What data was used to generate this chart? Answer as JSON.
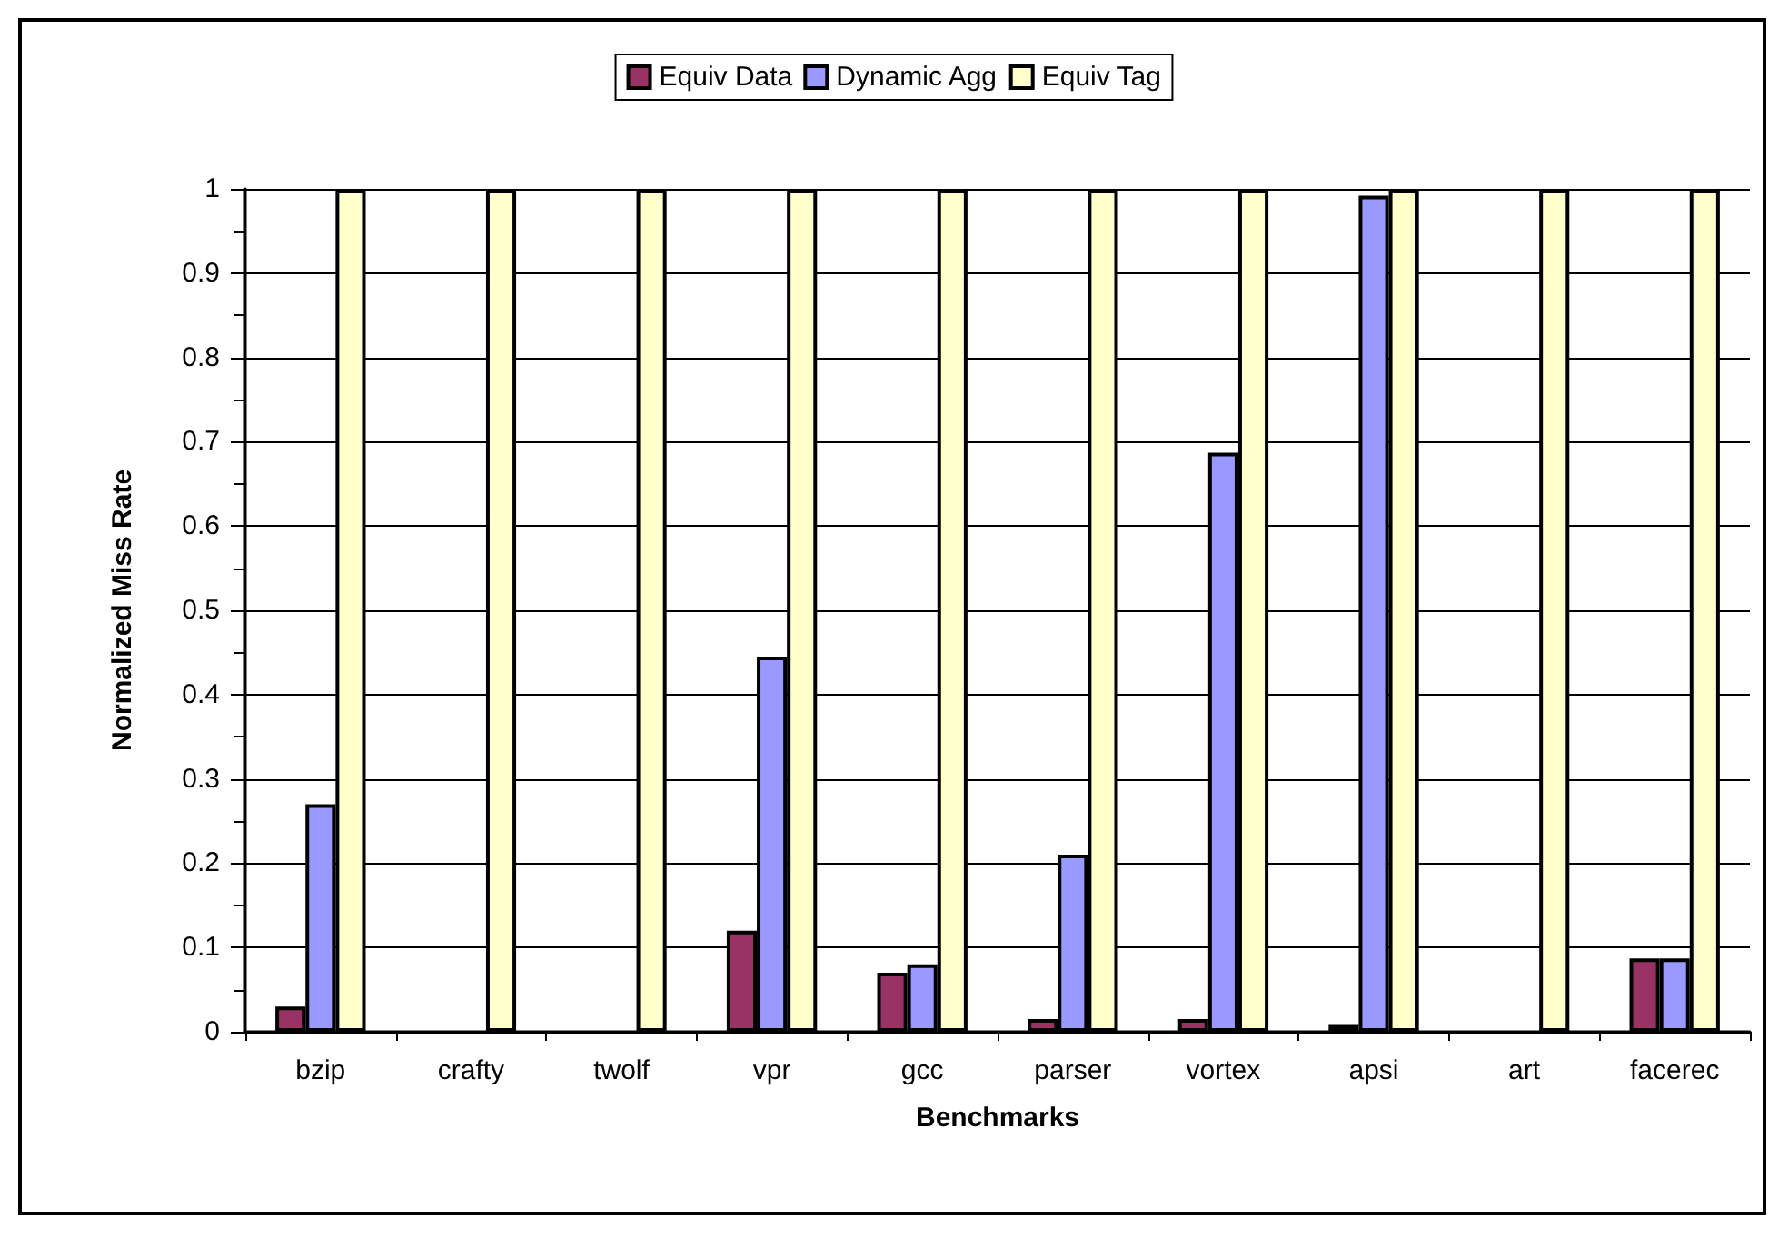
{
  "chart_data": {
    "type": "bar",
    "xlabel": "Benchmarks",
    "ylabel": "Normalized Miss Rate",
    "categories": [
      "bzip",
      "crafty",
      "twolf",
      "vpr",
      "gcc",
      "parser",
      "vortex",
      "apsi",
      "art",
      "facerec"
    ],
    "series": [
      {
        "name": "Equiv Data",
        "color": "#993366",
        "values": [
          0.03,
          0,
          0,
          0.12,
          0.07,
          0.015,
          0.015,
          0.008,
          0,
          0.087
        ]
      },
      {
        "name": "Dynamic Agg",
        "color": "#9999ff",
        "values": [
          0.27,
          0,
          0,
          0.445,
          0.08,
          0.21,
          0.687,
          0.992,
          0,
          0.087
        ]
      },
      {
        "name": "Equiv Tag",
        "color": "#ffffcc",
        "values": [
          1,
          1,
          1,
          1,
          1,
          1,
          1,
          1,
          1,
          1
        ]
      }
    ],
    "ylim": [
      0,
      1
    ],
    "yticks": [
      0,
      0.1,
      0.2,
      0.3,
      0.4,
      0.5,
      0.6,
      0.7,
      0.8,
      0.9,
      1
    ],
    "grid": "y",
    "legend": "top"
  }
}
